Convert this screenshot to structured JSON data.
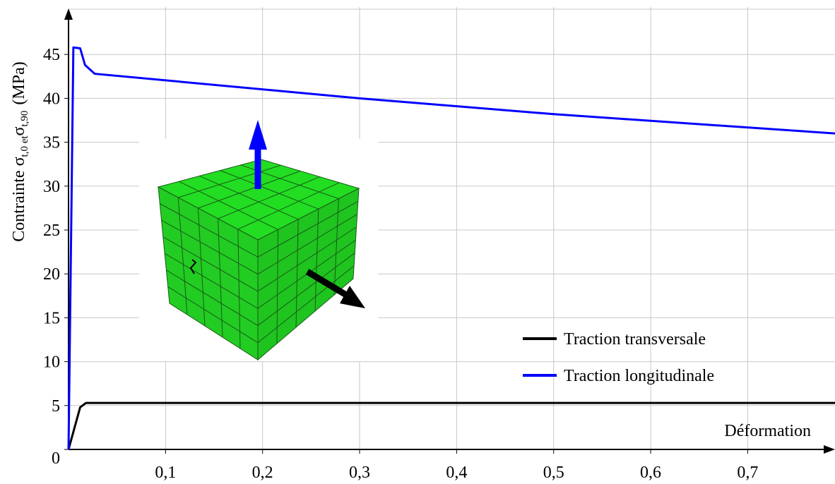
{
  "chart_data": {
    "type": "line",
    "ylabel": {
      "main": "Contrainte σ",
      "sub1": "t,0 et",
      "mid": "σ",
      "sub2": "t,90",
      "unit": "(MPa)"
    },
    "xlabel": "Déformation",
    "xlim": [
      0,
      0.79
    ],
    "ylim": [
      0,
      50
    ],
    "xticks": [
      {
        "value": 0.1,
        "label": "0,1"
      },
      {
        "value": 0.2,
        "label": "0,2"
      },
      {
        "value": 0.3,
        "label": "0,3"
      },
      {
        "value": 0.4,
        "label": "0,4"
      },
      {
        "value": 0.5,
        "label": "0,5"
      },
      {
        "value": 0.6,
        "label": "0,6"
      },
      {
        "value": 0.7,
        "label": "0,7"
      }
    ],
    "yticks": [
      0,
      5,
      10,
      15,
      20,
      25,
      30,
      35,
      40,
      45
    ],
    "grid": true,
    "legend": "lower right",
    "series": [
      {
        "name": "Traction transversale",
        "color": "#000000",
        "x": [
          0,
          0.012,
          0.018,
          0.79
        ],
        "values": [
          0,
          4.8,
          5.3,
          5.3
        ]
      },
      {
        "name": "Traction longitudinale",
        "color": "#0000ff",
        "x": [
          0,
          0.005,
          0.012,
          0.017,
          0.027,
          0.3,
          0.5,
          0.79
        ],
        "values": [
          0,
          45.8,
          45.7,
          43.8,
          42.8,
          40,
          38.2,
          36
        ]
      }
    ]
  }
}
